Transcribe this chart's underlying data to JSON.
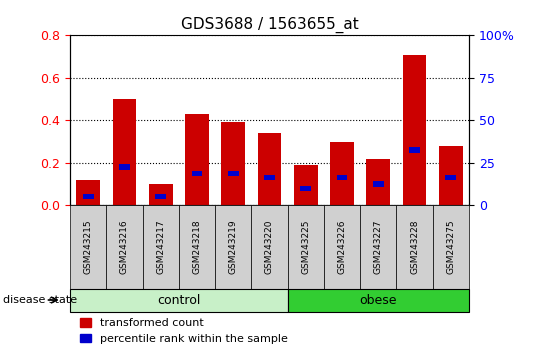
{
  "title": "GDS3688 / 1563655_at",
  "samples": [
    "GSM243215",
    "GSM243216",
    "GSM243217",
    "GSM243218",
    "GSM243219",
    "GSM243220",
    "GSM243225",
    "GSM243226",
    "GSM243227",
    "GSM243228",
    "GSM243275"
  ],
  "transformed_count": [
    0.12,
    0.5,
    0.1,
    0.43,
    0.39,
    0.34,
    0.19,
    0.3,
    0.22,
    0.71,
    0.28
  ],
  "percentile_rank_left": [
    0.04,
    0.18,
    0.04,
    0.15,
    0.15,
    0.13,
    0.08,
    0.13,
    0.1,
    0.26,
    0.13
  ],
  "groups": [
    {
      "label": "control",
      "start": 0,
      "end": 5,
      "color": "#c8f0c8"
    },
    {
      "label": "obese",
      "start": 5,
      "end": 10,
      "color": "#32cd32"
    }
  ],
  "bar_color_red": "#cc0000",
  "bar_color_blue": "#0000cc",
  "ylim_left": [
    0,
    0.8
  ],
  "ylim_right": [
    0,
    100
  ],
  "yticks_left": [
    0,
    0.2,
    0.4,
    0.6,
    0.8
  ],
  "yticks_right": [
    0,
    25,
    50,
    75,
    100
  ],
  "ytick_labels_right": [
    "0",
    "25",
    "50",
    "75",
    "100%"
  ],
  "background_plot": "#ffffff",
  "background_labels": "#d0d0d0",
  "label_disease_state": "disease state",
  "legend_items": [
    "transformed count",
    "percentile rank within the sample"
  ],
  "figsize": [
    5.39,
    3.54
  ]
}
